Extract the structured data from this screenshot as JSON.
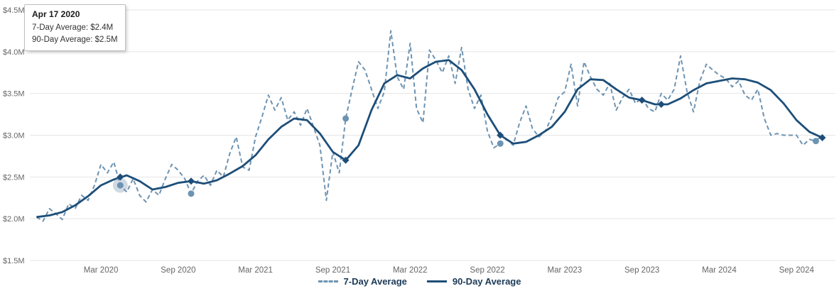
{
  "tooltip": {
    "title": "Apr 17 2020",
    "rows": [
      "7-Day Average: $2.4M",
      "90-Day Average: $2.5M"
    ]
  },
  "legend": {
    "items": [
      {
        "label": "7-Day Average",
        "style": "dashed",
        "color": "#6d93b2"
      },
      {
        "label": "90-Day Average",
        "style": "solid",
        "color": "#1d4e79"
      }
    ]
  },
  "colors": {
    "grid": "#e5e5e5",
    "axis_text": "#666666",
    "series_7day": "#6d93b2",
    "series_90day": "#1d4e79",
    "highlight_halo": "rgba(120,150,176,0.35)"
  },
  "chart_data": {
    "type": "line",
    "title": "",
    "xlabel": "",
    "ylabel": "",
    "grid": true,
    "legend_position": "bottom",
    "x_encoding": "months since Oct 2019",
    "xlim": [
      -0.3,
      61.8
    ],
    "ylim": [
      1.5,
      4.5
    ],
    "y_ticks": [
      {
        "value": 1.5,
        "label": "$1.5M"
      },
      {
        "value": 2.0,
        "label": "$2.0M"
      },
      {
        "value": 2.5,
        "label": "$2.5M"
      },
      {
        "value": 3.0,
        "label": "$3.0M"
      },
      {
        "value": 3.5,
        "label": "$3.5M"
      },
      {
        "value": 4.0,
        "label": "$4.0M"
      },
      {
        "value": 4.5,
        "label": "$4.5M"
      }
    ],
    "x_ticks": [
      {
        "x": 5,
        "label": "Mar 2020"
      },
      {
        "x": 11,
        "label": "Sep 2020"
      },
      {
        "x": 17,
        "label": "Mar 2021"
      },
      {
        "x": 23,
        "label": "Sep 2021"
      },
      {
        "x": 29,
        "label": "Mar 2022"
      },
      {
        "x": 35,
        "label": "Sep 2022"
      },
      {
        "x": 41,
        "label": "Mar 2023"
      },
      {
        "x": 47,
        "label": "Sep 2023"
      },
      {
        "x": 53,
        "label": "Mar 2024"
      },
      {
        "x": 59,
        "label": "Sep 2024"
      }
    ],
    "series": [
      {
        "name": "7-Day Average",
        "style": "dashed",
        "color": "#6d93b2",
        "x_start": 0,
        "x_step": 0.5,
        "values": [
          2.02,
          1.97,
          2.12,
          2.06,
          1.99,
          2.18,
          2.12,
          2.28,
          2.22,
          2.4,
          2.65,
          2.55,
          2.68,
          2.4,
          2.32,
          2.48,
          2.28,
          2.2,
          2.35,
          2.28,
          2.48,
          2.65,
          2.58,
          2.48,
          2.3,
          2.45,
          2.52,
          2.4,
          2.58,
          2.5,
          2.78,
          2.98,
          2.62,
          2.58,
          2.98,
          3.22,
          3.48,
          3.3,
          3.45,
          3.18,
          3.28,
          3.12,
          3.32,
          3.1,
          2.88,
          2.22,
          2.8,
          2.55,
          3.2,
          3.55,
          3.88,
          3.78,
          3.55,
          3.32,
          3.52,
          4.25,
          3.7,
          3.55,
          4.1,
          3.32,
          3.15,
          4.02,
          3.9,
          3.75,
          3.95,
          3.62,
          4.05,
          3.55,
          3.32,
          3.48,
          3.05,
          2.85,
          2.9,
          2.95,
          2.88,
          3.15,
          3.35,
          3.08,
          2.98,
          3.05,
          3.22,
          3.45,
          3.52,
          3.85,
          3.35,
          3.88,
          3.7,
          3.55,
          3.48,
          3.62,
          3.3,
          3.45,
          3.55,
          3.38,
          3.45,
          3.32,
          3.28,
          3.5,
          3.42,
          3.55,
          3.95,
          3.52,
          3.28,
          3.65,
          3.85,
          3.78,
          3.72,
          3.68,
          3.58,
          3.65,
          3.48,
          3.42,
          3.55,
          3.2,
          3.0,
          3.02,
          3.0,
          3.0,
          3.0,
          2.88,
          2.95,
          2.93,
          3.0
        ]
      },
      {
        "name": "90-Day Average",
        "style": "solid",
        "color": "#1d4e79",
        "x_start": 0,
        "x_step": 1,
        "values": [
          2.02,
          2.04,
          2.08,
          2.16,
          2.27,
          2.4,
          2.47,
          2.52,
          2.45,
          2.35,
          2.38,
          2.43,
          2.45,
          2.42,
          2.46,
          2.54,
          2.63,
          2.76,
          2.95,
          3.1,
          3.2,
          3.18,
          3.02,
          2.8,
          2.7,
          2.88,
          3.3,
          3.62,
          3.72,
          3.68,
          3.8,
          3.88,
          3.9,
          3.78,
          3.55,
          3.25,
          3.0,
          2.9,
          2.92,
          3.0,
          3.1,
          3.28,
          3.55,
          3.67,
          3.66,
          3.55,
          3.45,
          3.42,
          3.37,
          3.37,
          3.44,
          3.54,
          3.62,
          3.65,
          3.68,
          3.67,
          3.63,
          3.54,
          3.38,
          3.18,
          3.04,
          2.97
        ]
      }
    ],
    "markers": {
      "diamonds_90day": [
        {
          "x": 6.5,
          "y": 2.5
        },
        {
          "x": 12,
          "y": 2.45
        },
        {
          "x": 24,
          "y": 2.7
        },
        {
          "x": 36,
          "y": 3.0
        },
        {
          "x": 47,
          "y": 3.42
        },
        {
          "x": 48.5,
          "y": 3.37
        },
        {
          "x": 61,
          "y": 2.97
        }
      ],
      "circles_7day": [
        {
          "x": 6.5,
          "y": 2.4
        },
        {
          "x": 12,
          "y": 2.3
        },
        {
          "x": 24,
          "y": 3.2
        },
        {
          "x": 36,
          "y": 2.9
        },
        {
          "x": 60.5,
          "y": 2.93
        }
      ],
      "highlight": {
        "x": 6.5,
        "y": 2.4
      }
    }
  }
}
